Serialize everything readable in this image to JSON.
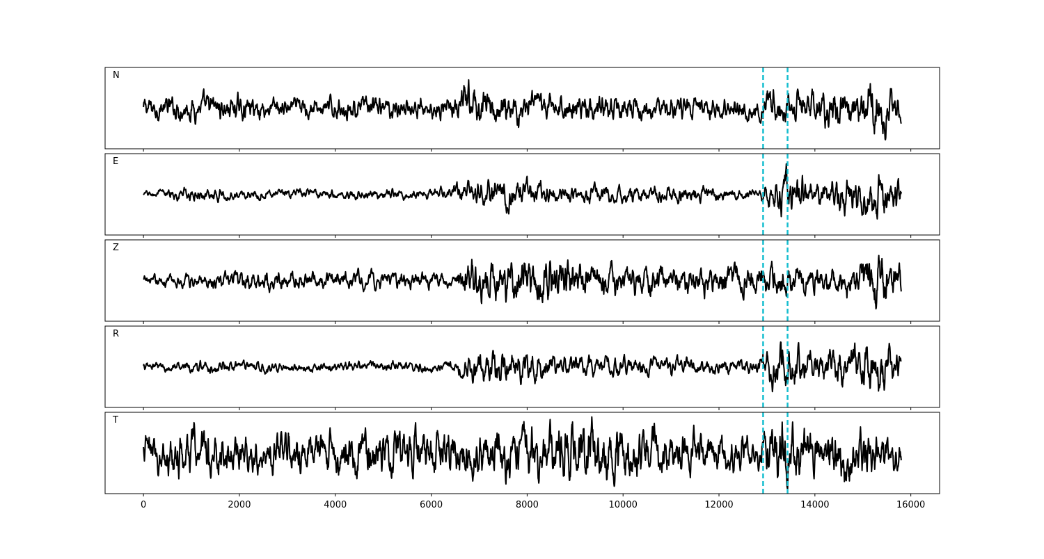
{
  "chart_data": {
    "type": "line",
    "title": "",
    "xlabel": "",
    "ylabel": "",
    "xlim": [
      -800,
      16600
    ],
    "x_ticks": [
      0,
      2000,
      4000,
      6000,
      8000,
      10000,
      12000,
      14000,
      16000
    ],
    "x_tick_labels": [
      "0",
      "2000",
      "4000",
      "6000",
      "8000",
      "10000",
      "12000",
      "14000",
      "16000"
    ],
    "y_ticks_visible": false,
    "grid": false,
    "legend": "none",
    "series_color": "#000000",
    "marker_color": "#17becf",
    "vertical_markers": [
      12920,
      13430
    ],
    "waveform_x_range": [
      0,
      15800
    ],
    "panels": [
      {
        "name": "N",
        "label": "N",
        "ylim": [
          -1.0,
          1.0
        ],
        "amplitude_envelope": [
          [
            0,
            0.35
          ],
          [
            1700,
            0.4
          ],
          [
            3000,
            0.32
          ],
          [
            6500,
            0.35
          ],
          [
            6700,
            0.7
          ],
          [
            8000,
            0.45
          ],
          [
            10000,
            0.4
          ],
          [
            12800,
            0.32
          ],
          [
            13000,
            0.6
          ],
          [
            14000,
            0.5
          ],
          [
            15000,
            0.8
          ],
          [
            15300,
            0.9
          ],
          [
            15800,
            0.5
          ]
        ]
      },
      {
        "name": "E",
        "label": "E",
        "ylim": [
          -1.0,
          1.0
        ],
        "amplitude_envelope": [
          [
            0,
            0.1
          ],
          [
            1000,
            0.2
          ],
          [
            2000,
            0.15
          ],
          [
            4000,
            0.15
          ],
          [
            6000,
            0.15
          ],
          [
            6500,
            0.3
          ],
          [
            7300,
            0.5
          ],
          [
            9000,
            0.25
          ],
          [
            11000,
            0.25
          ],
          [
            12800,
            0.15
          ],
          [
            13000,
            0.3
          ],
          [
            13300,
            0.8
          ],
          [
            14000,
            0.4
          ],
          [
            15000,
            0.6
          ],
          [
            15300,
            0.85
          ],
          [
            15800,
            0.45
          ]
        ]
      },
      {
        "name": "Z",
        "label": "Z",
        "ylim": [
          -1.0,
          1.0
        ],
        "amplitude_envelope": [
          [
            0,
            0.15
          ],
          [
            2200,
            0.3
          ],
          [
            4000,
            0.25
          ],
          [
            6500,
            0.25
          ],
          [
            6700,
            0.6
          ],
          [
            7400,
            0.65
          ],
          [
            8700,
            0.65
          ],
          [
            10000,
            0.45
          ],
          [
            12500,
            0.45
          ],
          [
            13300,
            0.5
          ],
          [
            14000,
            0.4
          ],
          [
            15000,
            0.6
          ],
          [
            15300,
            0.95
          ],
          [
            15800,
            0.5
          ]
        ]
      },
      {
        "name": "R",
        "label": "R",
        "ylim": [
          -1.0,
          1.0
        ],
        "amplitude_envelope": [
          [
            0,
            0.12
          ],
          [
            1200,
            0.2
          ],
          [
            3000,
            0.15
          ],
          [
            6500,
            0.15
          ],
          [
            6700,
            0.4
          ],
          [
            7300,
            0.5
          ],
          [
            9000,
            0.3
          ],
          [
            12800,
            0.2
          ],
          [
            13000,
            0.5
          ],
          [
            13300,
            0.8
          ],
          [
            14000,
            0.45
          ],
          [
            15000,
            0.6
          ],
          [
            15300,
            0.85
          ],
          [
            15800,
            0.4
          ]
        ]
      },
      {
        "name": "T",
        "label": "T",
        "ylim": [
          -1.0,
          1.0
        ],
        "amplitude_envelope": [
          [
            0,
            0.5
          ],
          [
            600,
            0.55
          ],
          [
            1400,
            0.8
          ],
          [
            2000,
            0.5
          ],
          [
            4000,
            0.55
          ],
          [
            5800,
            0.65
          ],
          [
            7000,
            0.6
          ],
          [
            8700,
            0.75
          ],
          [
            9500,
            0.85
          ],
          [
            10000,
            0.7
          ],
          [
            12800,
            0.45
          ],
          [
            13200,
            0.9
          ],
          [
            14000,
            0.55
          ],
          [
            14800,
            0.75
          ],
          [
            15800,
            0.45
          ]
        ]
      }
    ]
  }
}
